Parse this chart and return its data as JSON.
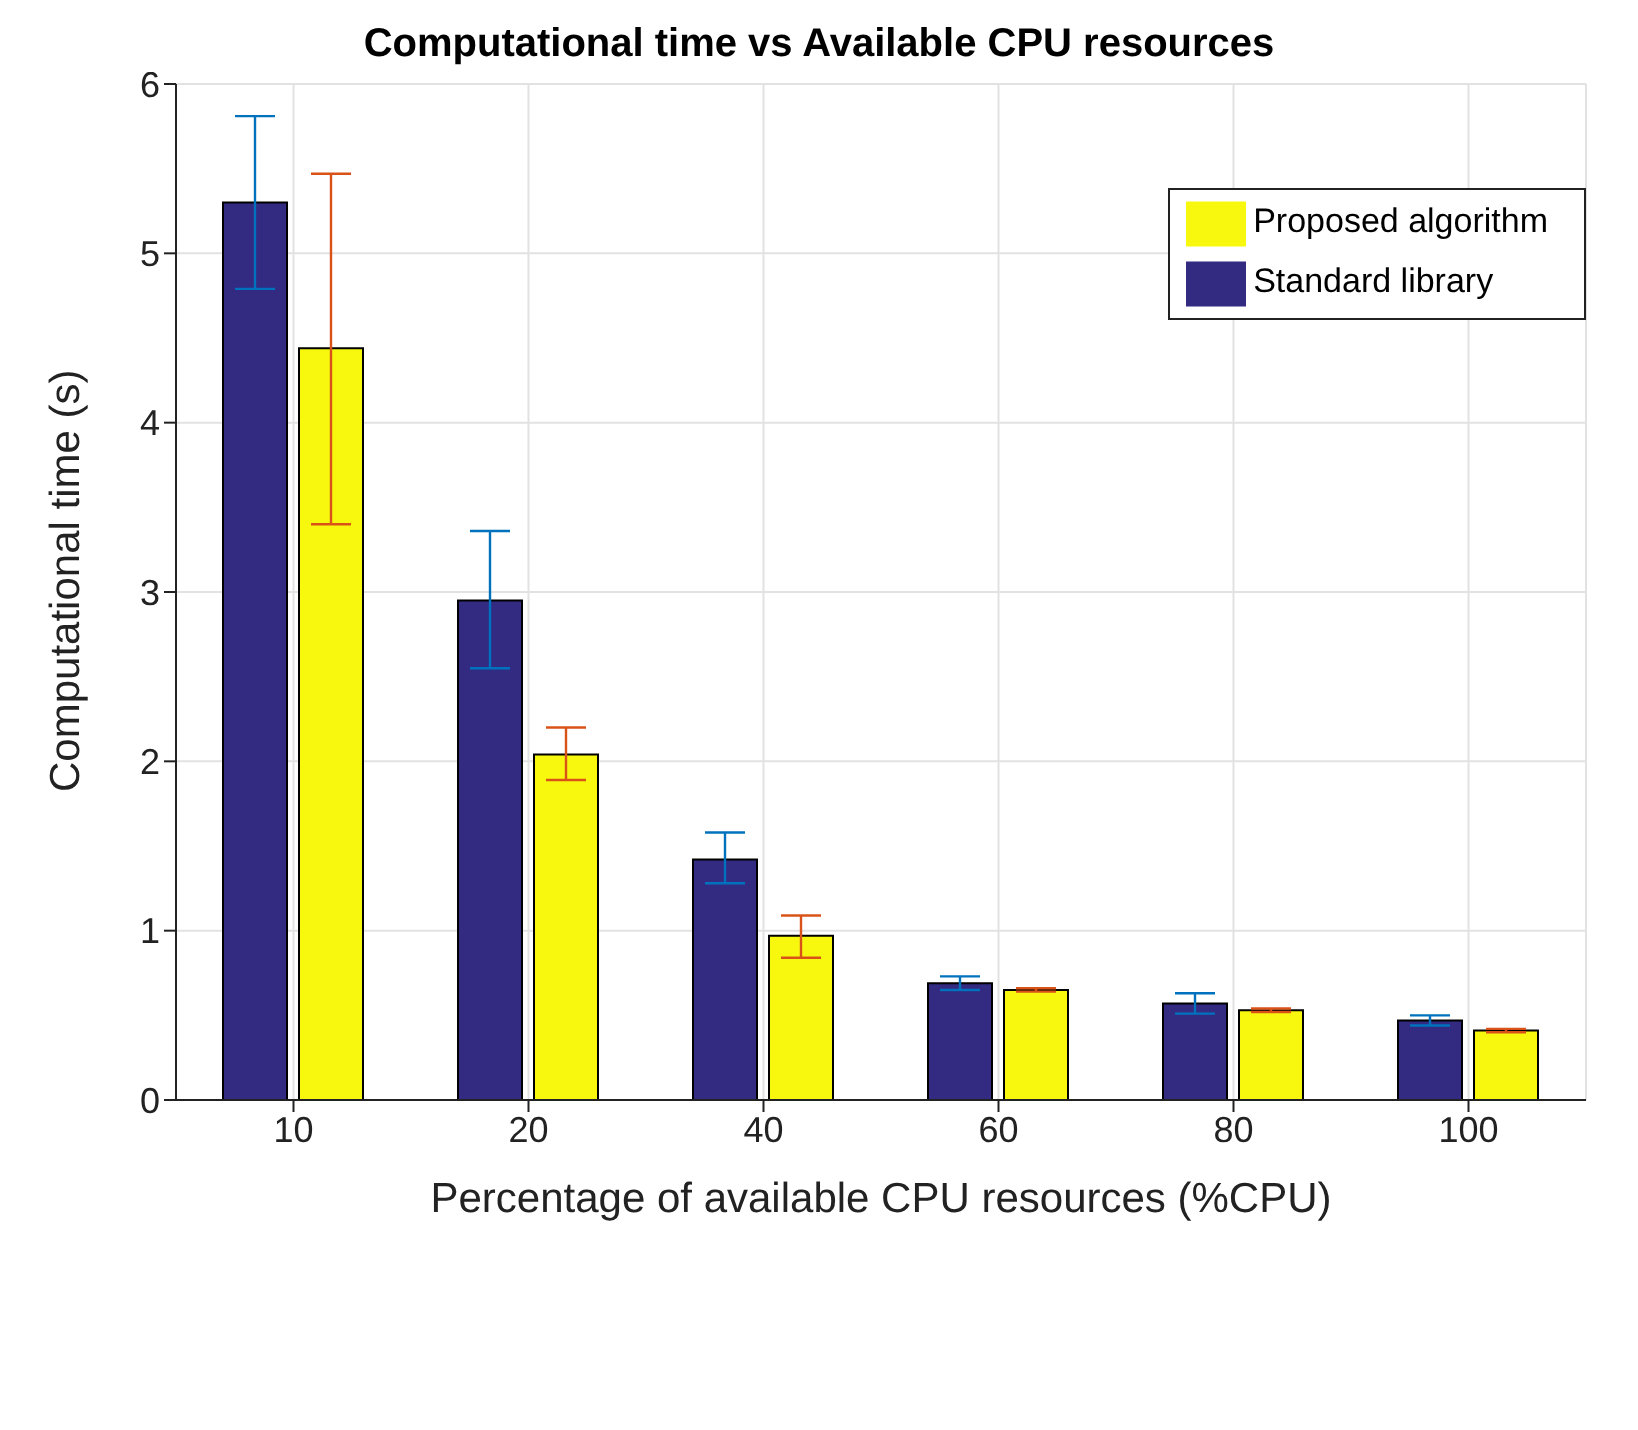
{
  "chart_data": {
    "type": "bar",
    "title": "Computational time vs Available CPU resources",
    "xlabel": "Percentage of available CPU resources (%CPU)",
    "ylabel": "Computational time (s)",
    "categories": [
      "10",
      "20",
      "40",
      "60",
      "80",
      "100"
    ],
    "series": [
      {
        "name": "Standard library",
        "color": "#332a82",
        "values": [
          5.3,
          2.95,
          1.42,
          0.69,
          0.57,
          0.47
        ],
        "errors": [
          [
            4.79,
            5.81
          ],
          [
            2.55,
            3.36
          ],
          [
            1.28,
            1.58
          ],
          [
            0.65,
            0.73
          ],
          [
            0.51,
            0.63
          ],
          [
            0.44,
            0.5
          ]
        ]
      },
      {
        "name": "Proposed algorithm",
        "color": "#f8f80f",
        "values": [
          4.44,
          2.04,
          0.97,
          0.65,
          0.53,
          0.41
        ],
        "errors": [
          [
            3.4,
            5.47
          ],
          [
            1.89,
            2.2
          ],
          [
            0.84,
            1.09
          ],
          [
            0.64,
            0.66
          ],
          [
            0.52,
            0.54
          ],
          [
            0.4,
            0.42
          ]
        ]
      }
    ],
    "ylim": [
      0,
      6
    ],
    "yticks": [
      0,
      1,
      2,
      3,
      4,
      5,
      6
    ],
    "grid": true,
    "legend": "top right"
  }
}
